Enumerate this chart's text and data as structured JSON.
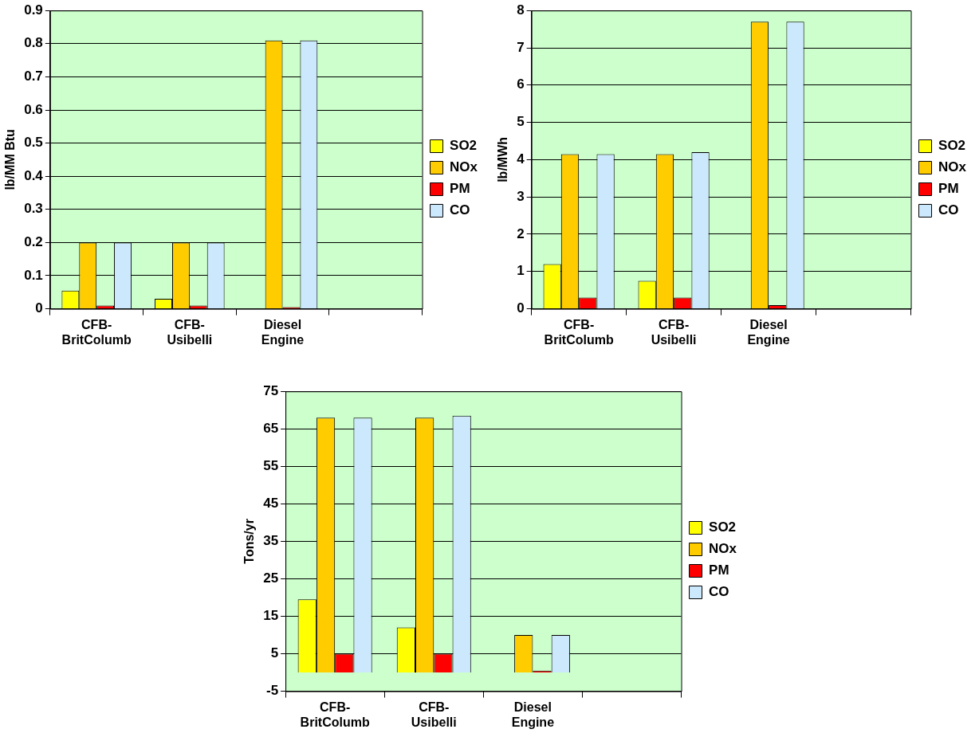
{
  "chart_data": [
    {
      "type": "bar",
      "ylabel": "lb/MM Btu",
      "categories": [
        "CFB- BritColumb",
        "CFB- Usibelli",
        "Diesel Engine",
        null
      ],
      "ylim": [
        0,
        0.9
      ],
      "yticks": [
        0,
        0.1,
        0.2,
        0.3,
        0.4,
        0.5,
        0.6,
        0.7,
        0.8,
        0.9
      ],
      "grid": "y",
      "legend": "right",
      "series": [
        {
          "name": "SO2",
          "color": "#ffff00",
          "values": [
            0.055,
            0.03,
            0,
            null
          ]
        },
        {
          "name": "NOx",
          "color": "#ffcc00",
          "values": [
            0.2,
            0.2,
            0.81,
            null
          ]
        },
        {
          "name": "PM",
          "color": "#ff0000",
          "values": [
            0.01,
            0.01,
            0.005,
            null
          ]
        },
        {
          "name": "CO",
          "color": "#cce8fd",
          "values": [
            0.2,
            0.2,
            0.81,
            null
          ]
        }
      ]
    },
    {
      "type": "bar",
      "ylabel": "lb/MWh",
      "categories": [
        "CFB- BritColumb",
        "CFB- Usibelli",
        "Diesel Engine",
        null
      ],
      "ylim": [
        0,
        8
      ],
      "yticks": [
        0,
        1,
        2,
        3,
        4,
        5,
        6,
        7,
        8
      ],
      "grid": "y",
      "legend": "right",
      "series": [
        {
          "name": "SO2",
          "color": "#ffff00",
          "values": [
            1.2,
            0.75,
            0,
            null
          ]
        },
        {
          "name": "NOx",
          "color": "#ffcc00",
          "values": [
            4.15,
            4.15,
            7.7,
            null
          ]
        },
        {
          "name": "PM",
          "color": "#ff0000",
          "values": [
            0.3,
            0.3,
            0.1,
            null
          ]
        },
        {
          "name": "CO",
          "color": "#cce8fd",
          "values": [
            4.15,
            4.2,
            7.7,
            null
          ]
        }
      ]
    },
    {
      "type": "bar",
      "ylabel": "Tons/yr",
      "categories": [
        "CFB- BritColumb",
        "CFB- Usibelli",
        "Diesel Engine",
        null
      ],
      "ylim": [
        -5,
        75
      ],
      "yticks": [
        -5,
        5,
        15,
        25,
        35,
        45,
        55,
        65,
        75
      ],
      "grid": "y",
      "legend": "right",
      "series": [
        {
          "name": "SO2",
          "color": "#ffff00",
          "values": [
            19.5,
            12,
            0,
            null
          ]
        },
        {
          "name": "NOx",
          "color": "#ffcc00",
          "values": [
            68,
            68,
            10,
            null
          ]
        },
        {
          "name": "PM",
          "color": "#ff0000",
          "values": [
            5,
            5,
            0.5,
            null
          ]
        },
        {
          "name": "CO",
          "color": "#cce8fd",
          "values": [
            68,
            68.5,
            10,
            null
          ]
        }
      ]
    }
  ]
}
